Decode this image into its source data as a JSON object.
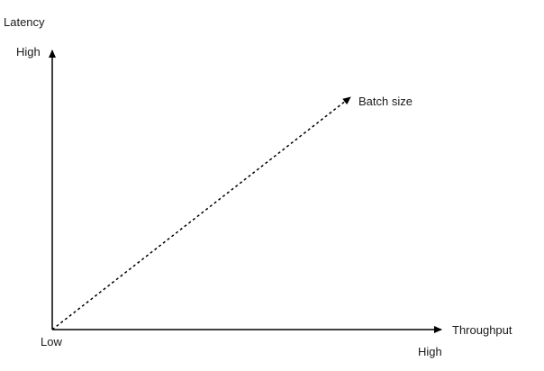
{
  "diagram": {
    "y_axis": {
      "title": "Latency",
      "high_label": "High"
    },
    "x_axis": {
      "title": "Throughput",
      "high_label": "High"
    },
    "origin_label": "Low",
    "trend_arrow": {
      "label": "Batch size",
      "style": "dashed"
    },
    "colors": {
      "line": "#000000",
      "text": "#1a1a1a",
      "background": "#ffffff"
    }
  }
}
